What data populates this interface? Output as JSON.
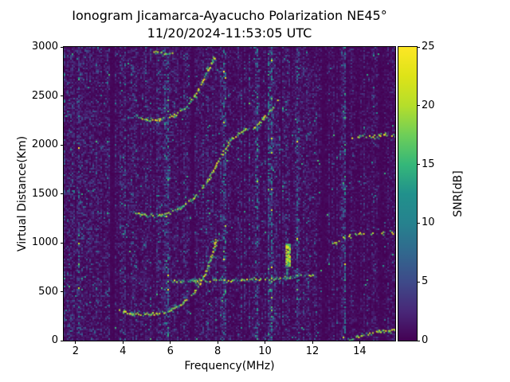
{
  "chart_data": {
    "type": "heatmap",
    "title": "Ionogram Jicamarca-Ayacucho Polarization NE45°",
    "subtitle": "11/20/2024-11:53:05 UTC",
    "xlabel": "Frequency(MHz)",
    "ylabel": "Virtual Distance(Km)",
    "xlim": [
      1.5,
      15.5
    ],
    "ylim": [
      0,
      3000
    ],
    "xticks": [
      2,
      4,
      6,
      8,
      10,
      12,
      14
    ],
    "yticks": [
      0,
      500,
      1000,
      1500,
      2000,
      2500,
      3000
    ],
    "grid": false,
    "colorbar": {
      "label": "SNR[dB]",
      "min": 0,
      "max": 25,
      "ticks": [
        0,
        5,
        10,
        15,
        20,
        25
      ],
      "colormap": "viridis"
    },
    "colormap_stops": [
      [
        0.0,
        68,
        1,
        84
      ],
      [
        0.1,
        72,
        40,
        120
      ],
      [
        0.2,
        62,
        74,
        137
      ],
      [
        0.3,
        49,
        104,
        142
      ],
      [
        0.4,
        38,
        130,
        142
      ],
      [
        0.5,
        33,
        145,
        140
      ],
      [
        0.6,
        53,
        183,
        121
      ],
      [
        0.7,
        110,
        206,
        88
      ],
      [
        0.8,
        181,
        222,
        43
      ],
      [
        0.9,
        221,
        227,
        24
      ],
      [
        1.0,
        253,
        231,
        37
      ]
    ],
    "noise": {
      "seed": 12345,
      "cell": 2,
      "mean_db": 1.25,
      "col_variation": [
        0.45,
        1.65
      ],
      "hot_prob": 0.005,
      "hot_db": [
        6,
        16
      ],
      "quiet_above_mhz": 12.2,
      "quiet_factor": 0.7
    },
    "rfi_dead_bands": [
      [
        3.42,
        3.64
      ],
      [
        6.9,
        6.99
      ],
      [
        9.03,
        9.11
      ],
      [
        10.64,
        10.72
      ],
      [
        12.38,
        12.52
      ],
      [
        12.93,
        13.03
      ],
      [
        14.84,
        14.93
      ]
    ],
    "rfi_noisy_bands": [
      [
        2.1,
        2.28,
        2.8
      ],
      [
        3.98,
        4.12,
        2.0
      ],
      [
        5.72,
        5.92,
        2.4
      ],
      [
        8.18,
        8.38,
        3.0
      ],
      [
        9.55,
        9.72,
        2.8
      ],
      [
        10.12,
        10.3,
        2.6
      ],
      [
        11.3,
        11.45,
        2.2
      ],
      [
        13.22,
        13.42,
        3.0
      ],
      [
        14.0,
        14.12,
        1.8
      ]
    ],
    "traces": [
      {
        "name": "F-layer 1st hop",
        "snr": [
          15,
          25
        ],
        "gap": 0.25,
        "points": [
          [
            3.8,
            310
          ],
          [
            4.3,
            288
          ],
          [
            4.9,
            276
          ],
          [
            5.5,
            284
          ],
          [
            6.0,
            320
          ],
          [
            6.5,
            390
          ],
          [
            7.0,
            500
          ],
          [
            7.4,
            660
          ],
          [
            7.7,
            860
          ],
          [
            7.9,
            1040
          ]
        ]
      },
      {
        "name": "flat echo 620 km",
        "snr": [
          12,
          24
        ],
        "gap": 0.3,
        "points": [
          [
            6.0,
            612
          ],
          [
            7.0,
            616
          ],
          [
            8.0,
            619
          ],
          [
            9.0,
            623
          ],
          [
            9.8,
            629
          ],
          [
            10.4,
            641
          ],
          [
            11.0,
            655
          ],
          [
            11.5,
            668
          ],
          [
            12.0,
            680
          ]
        ]
      },
      {
        "name": "F-layer 2nd hop",
        "snr": [
          14,
          25
        ],
        "gap": 0.3,
        "points": [
          [
            4.45,
            1310
          ],
          [
            4.95,
            1288
          ],
          [
            5.45,
            1286
          ],
          [
            5.95,
            1308
          ],
          [
            6.45,
            1365
          ],
          [
            6.95,
            1455
          ],
          [
            7.35,
            1570
          ],
          [
            7.75,
            1720
          ],
          [
            8.1,
            1890
          ],
          [
            8.5,
            2050
          ],
          [
            8.9,
            2130
          ],
          [
            9.3,
            2180
          ]
        ]
      },
      {
        "name": "F-layer 3rd hop",
        "snr": [
          14,
          25
        ],
        "gap": 0.32,
        "points": [
          [
            4.5,
            2300
          ],
          [
            5.0,
            2262
          ],
          [
            5.5,
            2258
          ],
          [
            6.1,
            2300
          ],
          [
            6.6,
            2380
          ],
          [
            7.0,
            2500
          ],
          [
            7.3,
            2640
          ],
          [
            7.6,
            2790
          ],
          [
            7.85,
            2900
          ]
        ]
      },
      {
        "name": "4th hop cusp",
        "snr": [
          14,
          22
        ],
        "gap": 0.5,
        "points": [
          [
            5.3,
            2965
          ],
          [
            5.8,
            2935
          ],
          [
            6.2,
            2965
          ]
        ]
      },
      {
        "name": "high dashes",
        "snr": [
          15,
          25
        ],
        "gap": 0.5,
        "points": [
          [
            9.5,
            2180
          ],
          [
            9.9,
            2270
          ],
          [
            10.3,
            2380
          ],
          [
            10.6,
            2500
          ]
        ]
      },
      {
        "name": "faint spread band",
        "snr": [
          5,
          12
        ],
        "gap": 0.55,
        "points": [
          [
            9.8,
            1800
          ],
          [
            10.6,
            1950
          ],
          [
            11.4,
            2080
          ],
          [
            12.1,
            2150
          ]
        ]
      },
      {
        "name": "oblique high right",
        "snr": [
          16,
          25
        ],
        "gap": 0.38,
        "points": [
          [
            13.6,
            2085
          ],
          [
            14.1,
            2092
          ],
          [
            14.6,
            2098
          ],
          [
            15.45,
            2100
          ]
        ]
      },
      {
        "name": "oblique mid right",
        "snr": [
          15,
          25
        ],
        "gap": 0.42,
        "points": [
          [
            12.85,
            1000
          ],
          [
            13.2,
            1052
          ],
          [
            13.7,
            1088
          ],
          [
            14.2,
            1102
          ],
          [
            15.45,
            1108
          ]
        ]
      },
      {
        "name": "low right",
        "snr": [
          15,
          25
        ],
        "gap": 0.3,
        "points": [
          [
            13.55,
            22
          ],
          [
            13.95,
            48
          ],
          [
            14.35,
            78
          ],
          [
            14.8,
            100
          ],
          [
            15.2,
            113
          ],
          [
            15.45,
            122
          ]
        ]
      }
    ],
    "blobs": [
      {
        "name": "strong echo blob",
        "freq": 10.95,
        "width": 0.16,
        "km": [
          770,
          990
        ],
        "snr": [
          14,
          25
        ],
        "density": 0.8
      },
      {
        "name": "blob tail",
        "freq": 10.95,
        "width": 0.1,
        "km": [
          640,
          770
        ],
        "snr": [
          7,
          16
        ],
        "density": 0.5
      }
    ]
  }
}
